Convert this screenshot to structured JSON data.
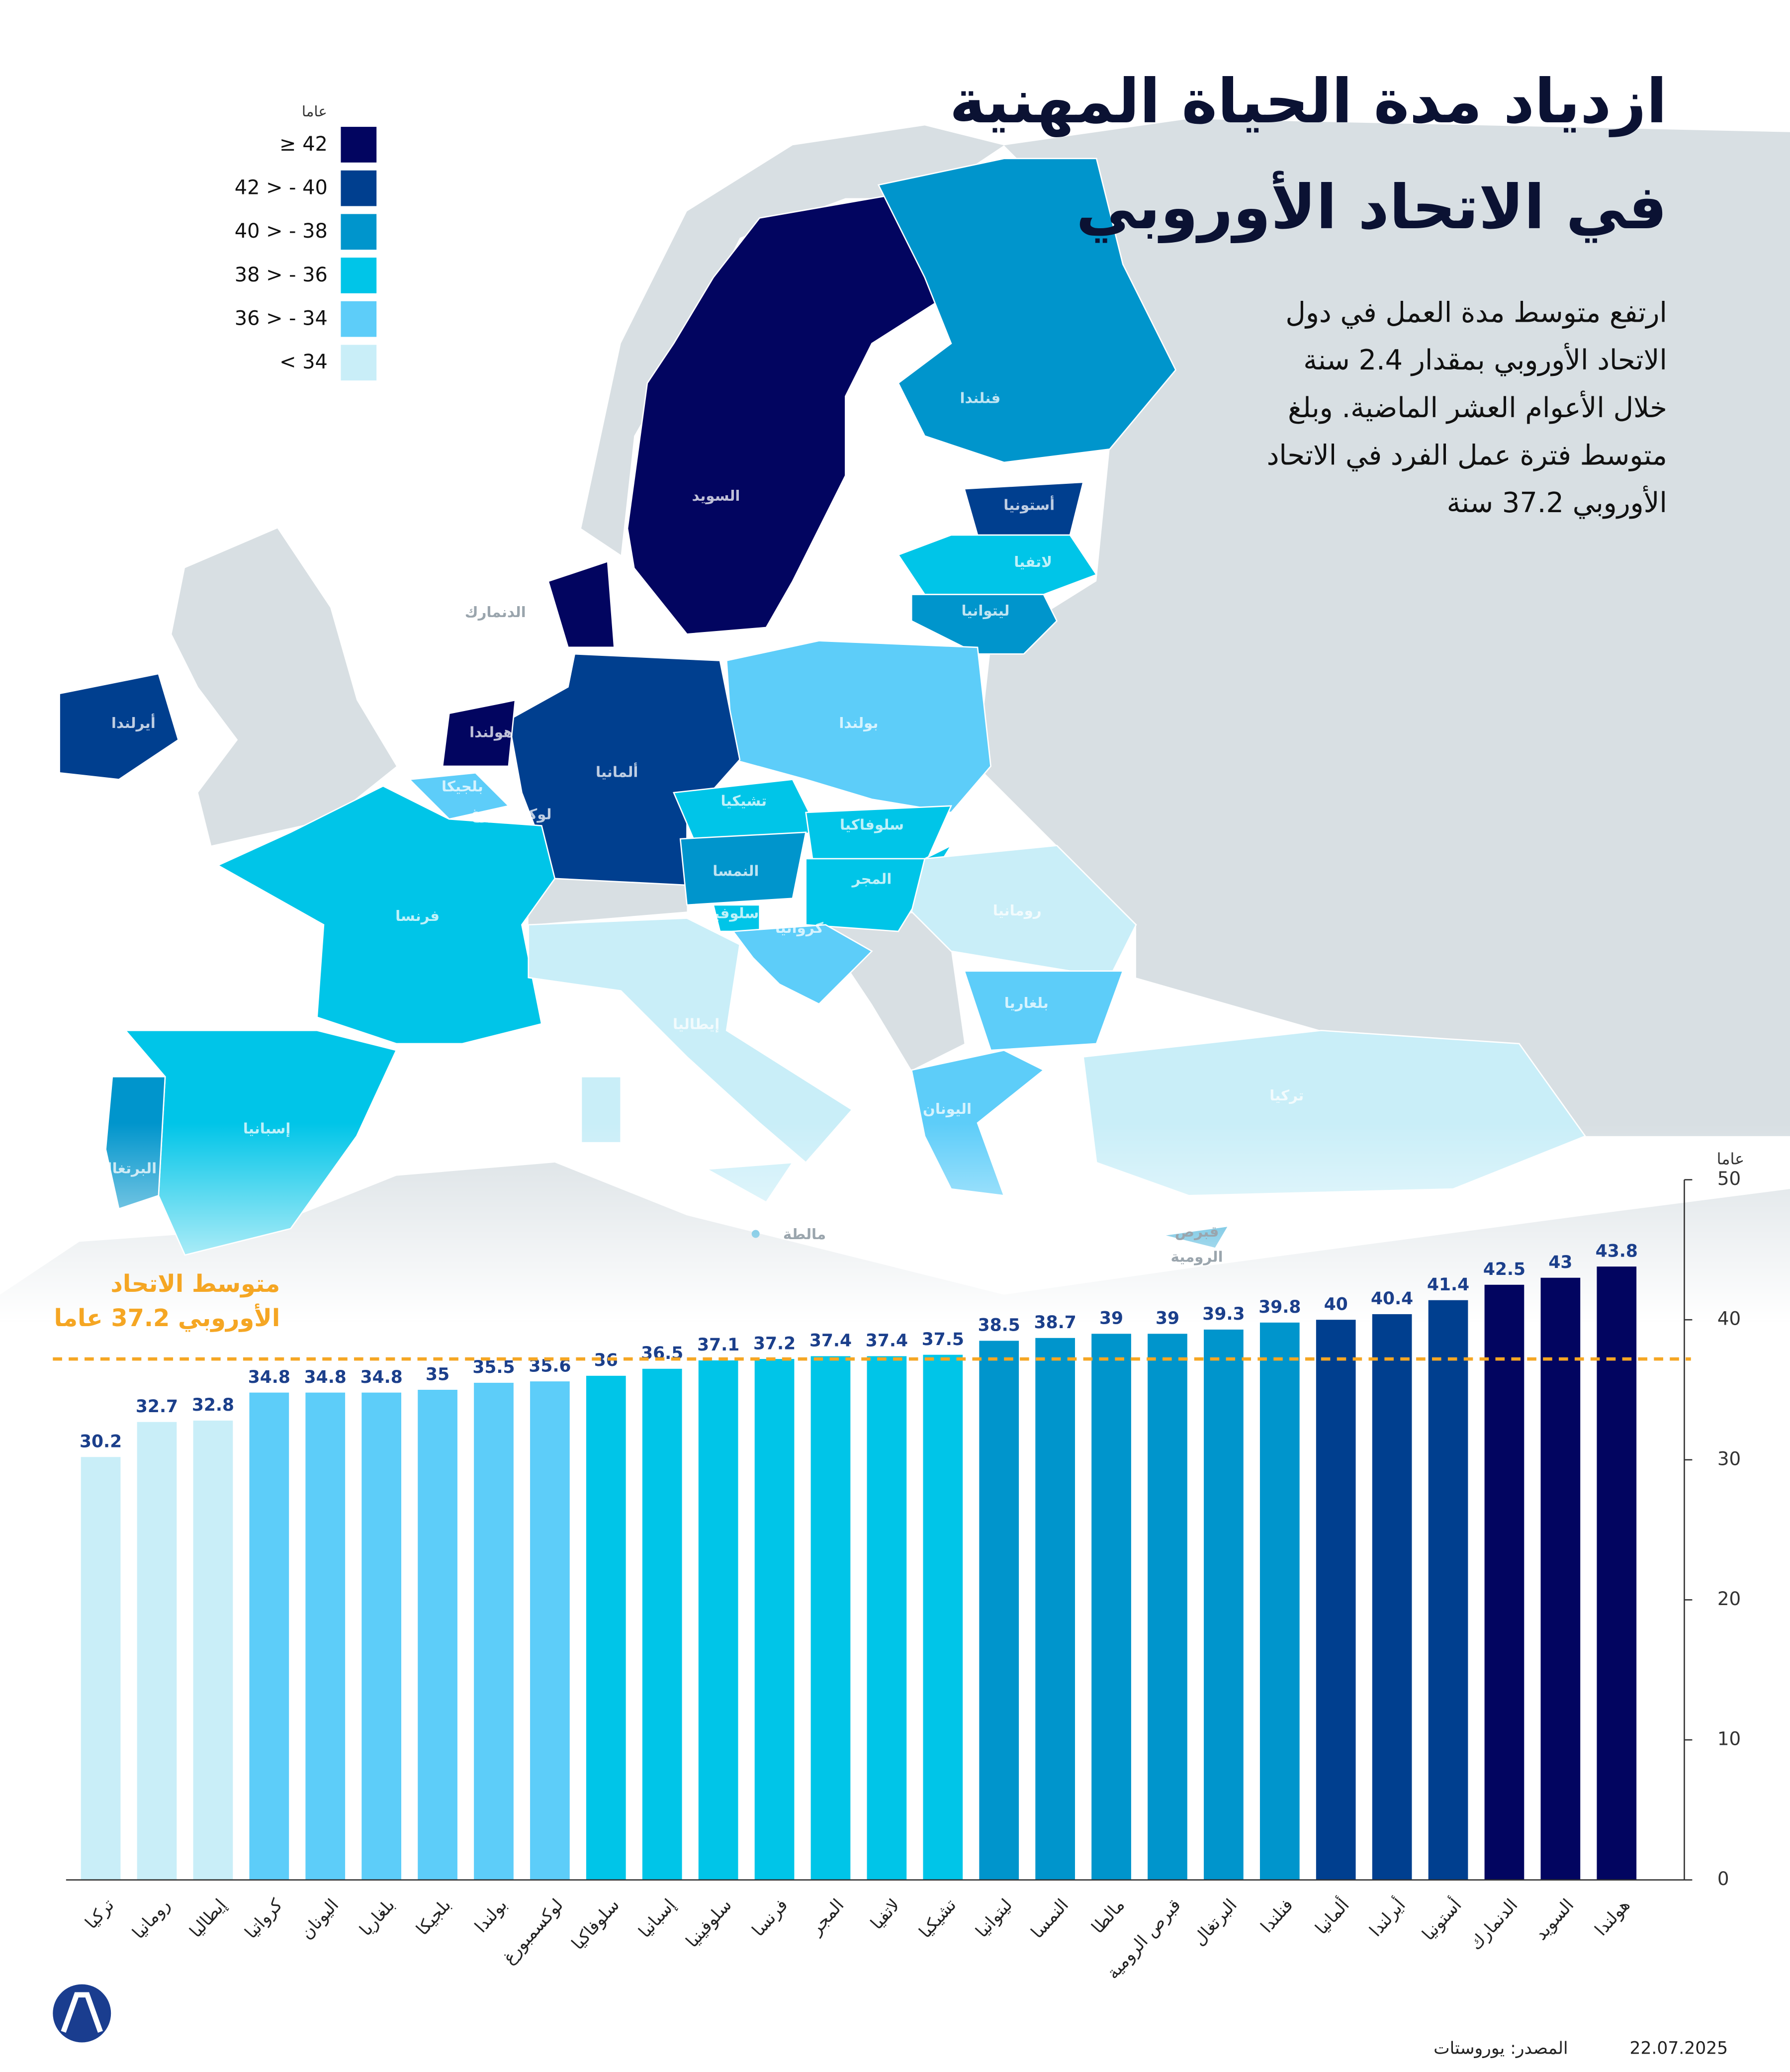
{
  "header": {
    "title": [
      "ازدياد مدة الحياة المهنية",
      "في الاتحاد الأوروبي"
    ],
    "subtitle": [
      "ارتفع متوسط مدة العمل في دول",
      "الاتحاد الأوروبي بمقدار 2.4 سنة",
      "خلال الأعوام العشر الماضية. وبلغ",
      "متوسط فترة عمل الفرد في الاتحاد",
      "الأوروبي 37.2 سنة"
    ]
  },
  "legend": {
    "unit": "عاما",
    "items": [
      {
        "label": "≥ 42",
        "color": "#020560"
      },
      {
        "label": "42 > - 40",
        "color": "#003f8f"
      },
      {
        "label": "40 > - 38",
        "color": "#0095cc"
      },
      {
        "label": "38 > - 36",
        "color": "#00c5e8"
      },
      {
        "label": "36 > - 34",
        "color": "#5dcdf9"
      },
      {
        "label": "< 34",
        "color": "#c9eef8"
      }
    ]
  },
  "map": {
    "labels": [
      "السويد",
      "فنلندا",
      "أستونيا",
      "لاتفيا",
      "ليتوانيا",
      "الدنمارك",
      "بولندا",
      "ألمانيا",
      "هولندا",
      "أيرلندا",
      "بلجيكا",
      "لوكسمبورغ",
      "تشيكيا",
      "سلوفاكيا",
      "النمسا",
      "المجر",
      "سلوفينيا",
      "كرواتيا",
      "رومانيا",
      "فرنسا",
      "بلغاريا",
      "إيطاليا",
      "تركيا",
      "اليونان",
      "إسبانيا",
      "البرتغال",
      "مالطة",
      "قبرص",
      "الرومية"
    ]
  },
  "chart_data": {
    "type": "bar",
    "y_label": "عاما",
    "categories": [
      "تركيا",
      "رومانيا",
      "إيطاليا",
      "كرواتيا",
      "اليونان",
      "بلغاريا",
      "بلجيكا",
      "بولندا",
      "لوكسمبورغ",
      "سلوفاكيا",
      "إسبانيا",
      "سلوفينيا",
      "فرنسا",
      "المجر",
      "لاتفيا",
      "تشيكيا",
      "ليتوانيا",
      "النمسا",
      "مالطا",
      "قبرص الرومية",
      "البرتغال",
      "فنلندا",
      "ألمانيا",
      "أيرلندا",
      "أستونيا",
      "الدنمارك",
      "السويد",
      "هولندا"
    ],
    "values": [
      30.2,
      32.7,
      32.8,
      34.8,
      34.8,
      34.8,
      35,
      35.5,
      35.6,
      36,
      36.5,
      37.1,
      37.2,
      37.4,
      37.4,
      37.5,
      38.5,
      38.7,
      39,
      39,
      39.3,
      39.8,
      40,
      40.4,
      41.4,
      42.5,
      43,
      43.8
    ],
    "colors": [
      "#c9eef8",
      "#c9eef8",
      "#c9eef8",
      "#5dcdf9",
      "#5dcdf9",
      "#5dcdf9",
      "#5dcdf9",
      "#5dcdf9",
      "#5dcdf9",
      "#00c5e8",
      "#00c5e8",
      "#00c5e8",
      "#00c5e8",
      "#00c5e8",
      "#00c5e8",
      "#00c5e8",
      "#0095cc",
      "#0095cc",
      "#0095cc",
      "#0095cc",
      "#0095cc",
      "#0095cc",
      "#003f8f",
      "#003f8f",
      "#003f8f",
      "#020560",
      "#020560",
      "#020560"
    ],
    "ylim": [
      0,
      50
    ],
    "yticks": [
      0,
      10,
      20,
      30,
      40,
      50
    ],
    "average": {
      "value": 37.2,
      "label": [
        "متوسط الاتحاد",
        "الأوروبي 37.2 عاما"
      ],
      "color": "#f5a623"
    }
  },
  "footer": {
    "source": "المصدر: يوروستات",
    "date": "22.07.2025"
  }
}
